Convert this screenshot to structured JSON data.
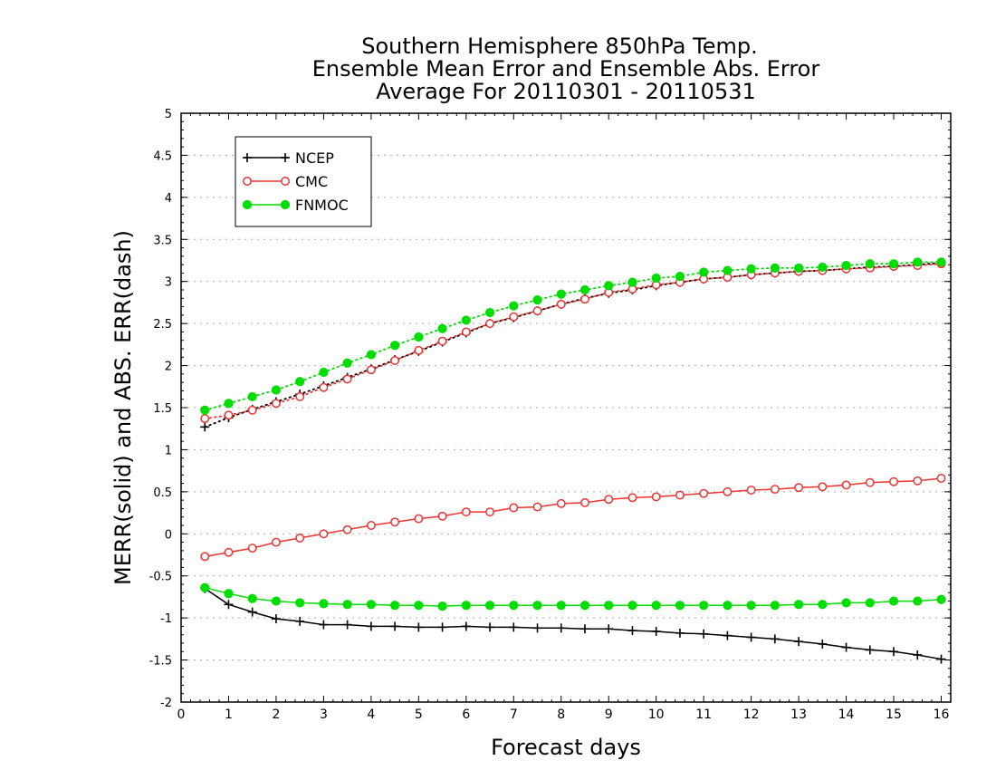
{
  "chart_data": {
    "type": "line",
    "title": [
      "Southern Hemisphere 850hPa Temp.",
      "Ensemble Mean Error and Ensemble Abs. Error",
      "Average For 20110301 - 20110531"
    ],
    "xlabel": "Forecast days",
    "ylabel": "MERR(solid) and ABS. ERR(dash)",
    "xlim": [
      0,
      16.2
    ],
    "ylim": [
      -2,
      5
    ],
    "xticks": [
      0,
      1,
      2,
      3,
      4,
      5,
      6,
      7,
      8,
      9,
      10,
      11,
      12,
      13,
      14,
      15,
      16
    ],
    "yticks": [
      -2,
      -1.5,
      -1,
      -0.5,
      0,
      0.5,
      1,
      1.5,
      2,
      2.5,
      3,
      3.5,
      4,
      4.5,
      5
    ],
    "ytick_labels": [
      "-2",
      "-1.5",
      "-1",
      "-0.5",
      "0",
      "0.5",
      "1",
      "1.5",
      "2",
      "2.5",
      "3",
      "3.5",
      "4",
      "4.5",
      "5"
    ],
    "grid": "horizontal-dotted",
    "legend_position": "top-left",
    "x": [
      0.5,
      1,
      1.5,
      2,
      2.5,
      3,
      3.5,
      4,
      4.5,
      5,
      5.5,
      6,
      6.5,
      7,
      7.5,
      8,
      8.5,
      9,
      9.5,
      10,
      10.5,
      11,
      11.5,
      12,
      12.5,
      13,
      13.5,
      14,
      14.5,
      15,
      15.5,
      16
    ],
    "series": [
      {
        "name": "NCEP",
        "color": "#000000",
        "marker": "plus",
        "mean_error": [
          -0.65,
          -0.84,
          -0.93,
          -1.01,
          -1.04,
          -1.08,
          -1.08,
          -1.1,
          -1.1,
          -1.11,
          -1.11,
          -1.1,
          -1.11,
          -1.11,
          -1.12,
          -1.12,
          -1.13,
          -1.13,
          -1.15,
          -1.16,
          -1.18,
          -1.19,
          -1.21,
          -1.23,
          -1.25,
          -1.28,
          -1.31,
          -1.35,
          -1.38,
          -1.4,
          -1.44,
          -1.49
        ],
        "abs_error": [
          1.27,
          1.38,
          1.48,
          1.57,
          1.66,
          1.76,
          1.86,
          1.96,
          2.07,
          2.17,
          2.28,
          2.39,
          2.5,
          2.57,
          2.65,
          2.73,
          2.8,
          2.86,
          2.9,
          2.95,
          2.99,
          3.03,
          3.05,
          3.08,
          3.1,
          3.12,
          3.13,
          3.15,
          3.17,
          3.18,
          3.2,
          3.22
        ]
      },
      {
        "name": "CMC",
        "color": "#ee3333",
        "marker": "open-circle",
        "mean_error": [
          -0.27,
          -0.22,
          -0.17,
          -0.1,
          -0.05,
          0.0,
          0.05,
          0.1,
          0.14,
          0.18,
          0.21,
          0.26,
          0.26,
          0.31,
          0.32,
          0.36,
          0.37,
          0.41,
          0.43,
          0.44,
          0.46,
          0.48,
          0.5,
          0.52,
          0.53,
          0.55,
          0.56,
          0.58,
          0.61,
          0.62,
          0.63,
          0.66
        ],
        "abs_error": [
          1.37,
          1.41,
          1.47,
          1.55,
          1.63,
          1.74,
          1.84,
          1.95,
          2.06,
          2.18,
          2.29,
          2.4,
          2.5,
          2.58,
          2.65,
          2.73,
          2.79,
          2.87,
          2.91,
          2.96,
          2.99,
          3.03,
          3.05,
          3.08,
          3.1,
          3.12,
          3.13,
          3.15,
          3.16,
          3.18,
          3.19,
          3.21
        ]
      },
      {
        "name": "FNMOC",
        "color": "#00dd00",
        "marker": "filled-circle",
        "mean_error": [
          -0.64,
          -0.71,
          -0.77,
          -0.8,
          -0.82,
          -0.83,
          -0.84,
          -0.84,
          -0.85,
          -0.85,
          -0.86,
          -0.85,
          -0.85,
          -0.85,
          -0.85,
          -0.85,
          -0.85,
          -0.85,
          -0.85,
          -0.85,
          -0.85,
          -0.85,
          -0.85,
          -0.85,
          -0.85,
          -0.84,
          -0.84,
          -0.82,
          -0.82,
          -0.8,
          -0.8,
          -0.78
        ],
        "abs_error": [
          1.47,
          1.55,
          1.63,
          1.71,
          1.81,
          1.92,
          2.03,
          2.13,
          2.24,
          2.34,
          2.44,
          2.54,
          2.63,
          2.71,
          2.78,
          2.85,
          2.9,
          2.95,
          2.99,
          3.04,
          3.06,
          3.11,
          3.13,
          3.15,
          3.16,
          3.16,
          3.17,
          3.19,
          3.21,
          3.21,
          3.23,
          3.23
        ]
      }
    ]
  }
}
